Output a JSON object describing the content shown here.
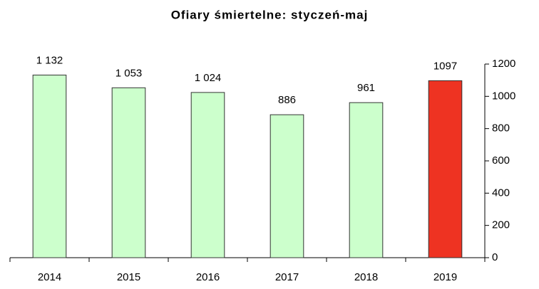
{
  "chart_data": {
    "type": "bar",
    "title": "Ofiary śmiertelne: styczeń-maj",
    "categories": [
      "2014",
      "2015",
      "2016",
      "2017",
      "2018",
      "2019"
    ],
    "values": [
      1132,
      1053,
      1024,
      886,
      961,
      1097
    ],
    "value_labels": [
      "1 132",
      "1 053",
      "1 024",
      "886",
      "961",
      "1097"
    ],
    "colors": [
      "#ccffcc",
      "#ccffcc",
      "#ccffcc",
      "#ccffcc",
      "#ccffcc",
      "#ee3322"
    ],
    "ylim": [
      0,
      1200
    ],
    "yticks": [
      0,
      200,
      400,
      600,
      800,
      1000,
      1200
    ],
    "y_axis_position": "right",
    "grid": false
  }
}
